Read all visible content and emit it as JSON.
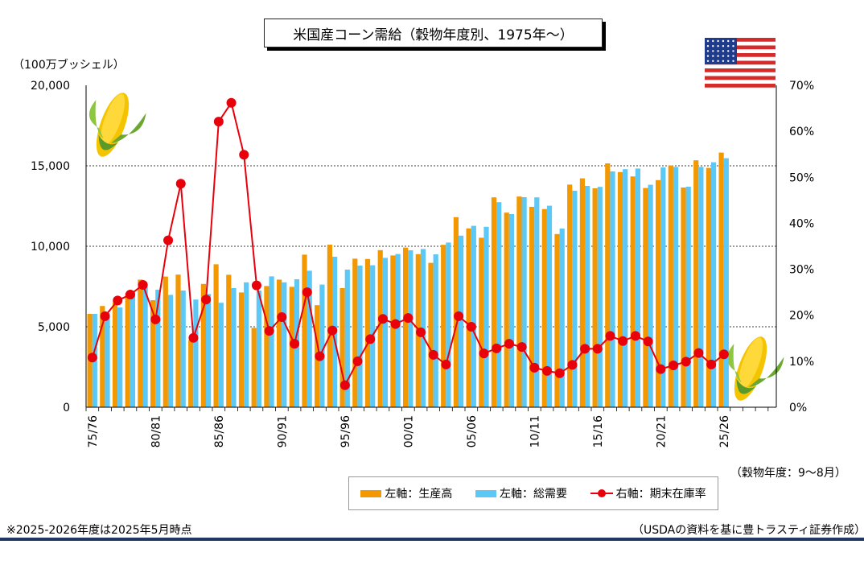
{
  "title": "米国産コーン需給（穀物年度別、1975年～）",
  "unit_left": "（100万ブッシェル）",
  "fiscal_year_note": "（穀物年度：9～8月）",
  "notes": {
    "left": "※2025-2026年度は2025年5月時点",
    "right": "（USDAの資料を基に豊トラスティ証券作成）"
  },
  "legend": {
    "production": "左軸：生産高",
    "demand": "左軸：総需要",
    "stock_ratio": "右軸：期末在庫率"
  },
  "colors": {
    "production": "#f39800",
    "demand": "#5bc8f5",
    "stock_ratio": "#e8000b",
    "bottom_bar": "#1f3864"
  },
  "chart_data": {
    "type": "bar",
    "x_tick_labels": [
      "75/76",
      "80/81",
      "85/86",
      "90/91",
      "95/96",
      "00/01",
      "05/06",
      "10/11",
      "15/16",
      "20/21",
      "25/26"
    ],
    "categories": [
      "75/76",
      "76/77",
      "77/78",
      "78/79",
      "79/80",
      "80/81",
      "81/82",
      "82/83",
      "83/84",
      "84/85",
      "85/86",
      "86/87",
      "87/88",
      "88/89",
      "89/90",
      "90/91",
      "91/92",
      "92/93",
      "93/94",
      "94/95",
      "95/96",
      "96/97",
      "97/98",
      "98/99",
      "99/00",
      "00/01",
      "01/02",
      "02/03",
      "03/04",
      "04/05",
      "05/06",
      "06/07",
      "07/08",
      "08/09",
      "09/10",
      "10/11",
      "11/12",
      "12/13",
      "13/14",
      "14/15",
      "15/16",
      "16/17",
      "17/18",
      "18/19",
      "19/20",
      "20/21",
      "21/22",
      "22/23",
      "23/24",
      "24/25",
      "25/26"
    ],
    "series": [
      {
        "name": "左軸：生産高",
        "axis": "left",
        "values": [
          5800,
          6290,
          6500,
          7090,
          7930,
          6650,
          8120,
          8240,
          4170,
          7660,
          8880,
          8230,
          7130,
          4930,
          7530,
          7930,
          7480,
          9480,
          6340,
          10100,
          7400,
          9230,
          9210,
          9760,
          9430,
          9920,
          9510,
          8970,
          10090,
          11810,
          11110,
          10530,
          13040,
          12090,
          13090,
          12450,
          12310,
          10760,
          13830,
          14220,
          13600,
          15150,
          14610,
          14340,
          13620,
          14110,
          15020,
          13650,
          15340,
          14870,
          15820
        ]
      },
      {
        "name": "左軸：総需要",
        "axis": "right_none_left",
        "values": [
          5800,
          5840,
          6200,
          7170,
          7470,
          7300,
          6980,
          7250,
          6690,
          7030,
          6490,
          7400,
          7760,
          7250,
          8130,
          7760,
          7950,
          8480,
          7620,
          9350,
          8550,
          8800,
          8820,
          9280,
          9520,
          9750,
          9830,
          9500,
          10230,
          10660,
          11270,
          11210,
          12740,
          12000,
          13050,
          13040,
          12520,
          11100,
          13450,
          13750,
          13690,
          14650,
          14790,
          14830,
          13820,
          14900,
          14930,
          13700,
          14930,
          15220,
          15470
        ]
      },
      {
        "name": "右軸：期末在庫率",
        "axis": "right",
        "values": [
          10.8,
          19.8,
          23.2,
          24.5,
          26.6,
          19.1,
          36.3,
          48.6,
          15.1,
          23.4,
          62.1,
          66.2,
          54.9,
          26.5,
          16.6,
          19.6,
          13.8,
          25.0,
          11.1,
          16.7,
          4.8,
          10.0,
          14.8,
          19.2,
          18.1,
          19.4,
          16.3,
          11.4,
          9.3,
          19.8,
          17.5,
          11.7,
          12.8,
          13.8,
          13.1,
          8.6,
          7.9,
          7.4,
          9.2,
          12.7,
          12.7,
          15.5,
          14.4,
          15.5,
          14.3,
          8.3,
          9.1,
          9.9,
          11.8,
          9.3,
          11.5
        ]
      }
    ],
    "y_left": {
      "min": 0,
      "max": 20000,
      "ticks": [
        0,
        5000,
        10000,
        15000,
        20000
      ],
      "tick_labels": [
        "0",
        "5,000",
        "10,000",
        "15,000",
        "20,000"
      ]
    },
    "y_right": {
      "min": 0,
      "max": 70,
      "ticks": [
        0,
        10,
        20,
        30,
        40,
        50,
        60,
        70
      ],
      "tick_labels": [
        "0%",
        "10%",
        "20%",
        "30%",
        "40%",
        "50%",
        "60%",
        "70%"
      ]
    },
    "grid": "horizontal dotted at 5,000 / 10,000 / 15,000"
  }
}
